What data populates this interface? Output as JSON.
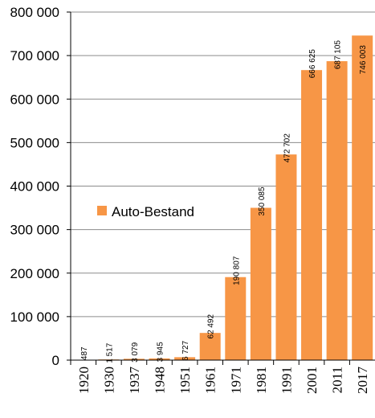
{
  "chart_data": {
    "type": "bar",
    "categories": [
      "1920",
      "1930",
      "1937",
      "1948",
      "1951",
      "1961",
      "1971",
      "1981",
      "1991",
      "2001",
      "2011",
      "2017"
    ],
    "series": [
      {
        "name": "Auto-Bestand",
        "values": [
          487,
          1517,
          3079,
          3945,
          6727,
          62492,
          190807,
          350085,
          472702,
          666625,
          687105,
          746003
        ],
        "value_labels": [
          "487",
          "1 517",
          "3 079",
          "3 945",
          "6 727",
          "62 492",
          "190 807",
          "350 085",
          "472 702",
          "666 625",
          "687 105",
          "746 003"
        ],
        "color": "#F79646"
      }
    ],
    "ylim": [
      0,
      800000
    ],
    "yticks": [
      0,
      100000,
      200000,
      300000,
      400000,
      500000,
      600000,
      700000,
      800000
    ],
    "ytick_labels": [
      "0",
      "100 000",
      "200 000",
      "300 000",
      "400 000",
      "500 000",
      "600 000",
      "700 000",
      "800 000"
    ],
    "grid": true,
    "legend_position": "center-left",
    "title": "",
    "xlabel": "",
    "ylabel": ""
  }
}
